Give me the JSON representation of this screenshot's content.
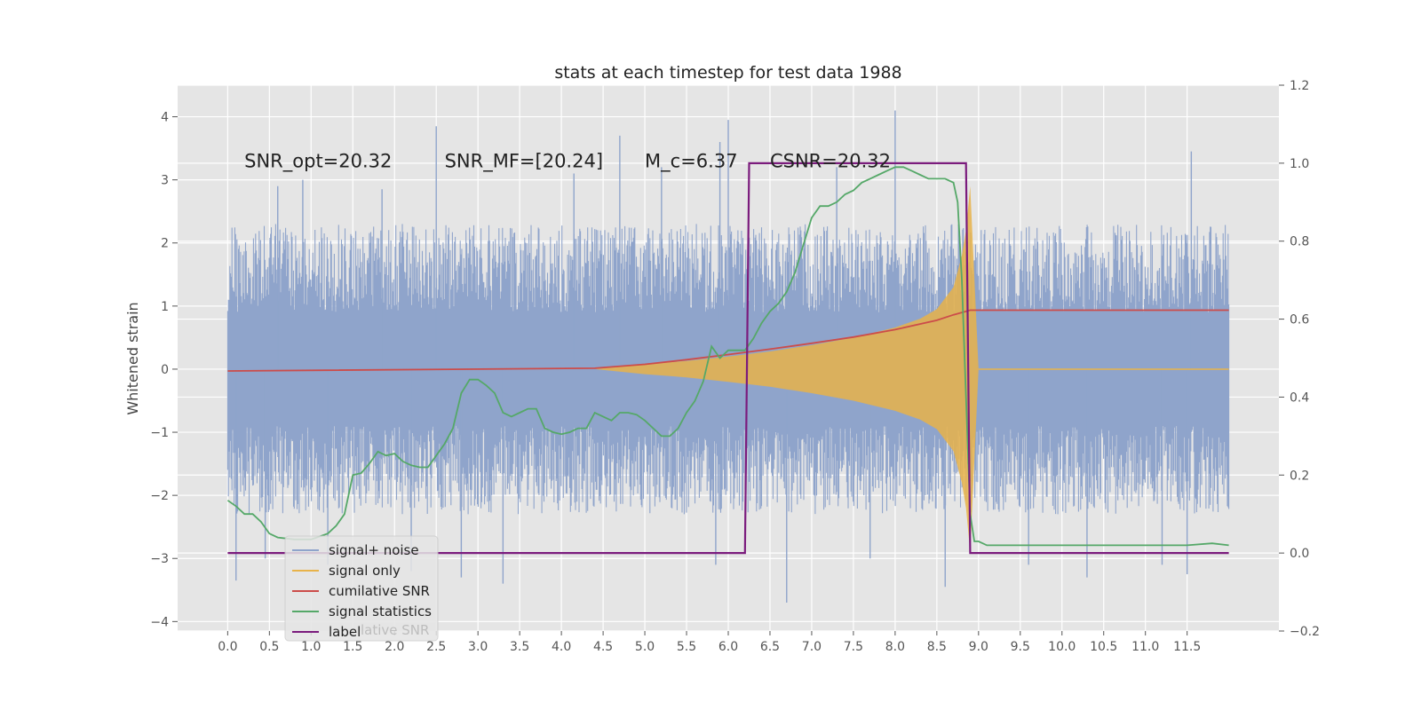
{
  "chart_data": {
    "type": "line",
    "title": "stats at each timestep for test data 1988",
    "ylabel": "Whitened strain",
    "y2label": "",
    "xlim": [
      -0.6,
      12.6
    ],
    "ylim": [
      -4.15,
      4.5
    ],
    "y2lim": [
      -0.2,
      1.2
    ],
    "grid": true,
    "xticks": [
      0.0,
      0.5,
      1.0,
      1.5,
      2.0,
      2.5,
      3.0,
      3.5,
      4.0,
      4.5,
      5.0,
      5.5,
      6.0,
      6.5,
      7.0,
      7.5,
      8.0,
      8.5,
      9.0,
      9.5,
      10.0,
      10.5,
      11.0,
      11.5
    ],
    "xtick_labels": [
      "0.0",
      "0.5",
      "1.0",
      "1.5",
      "2.0",
      "2.5",
      "3.0",
      "3.5",
      "4.0",
      "4.5",
      "5.0",
      "5.5",
      "6.0",
      "6.5",
      "7.0",
      "7.5",
      "8.0",
      "8.5",
      "9.0",
      "9.5",
      "10.0",
      "10.5",
      "11.0",
      "11.5"
    ],
    "yticks": [
      -4,
      -3,
      -2,
      -1,
      0,
      1,
      2,
      3,
      4
    ],
    "ytick_labels": [
      "−4",
      "−3",
      "−2",
      "−1",
      "0",
      "1",
      "2",
      "3",
      "4"
    ],
    "y2ticks": [
      -0.2,
      0.0,
      0.2,
      0.4,
      0.6,
      0.8,
      1.0,
      1.2
    ],
    "y2tick_labels": [
      "−0.2",
      "0.0",
      "0.2",
      "0.4",
      "0.6",
      "0.8",
      "1.0",
      "1.2"
    ],
    "annotations": [
      {
        "id": "snr-opt",
        "text": "SNR_opt=20.32",
        "x": 0.2,
        "y": 3.3
      },
      {
        "id": "snr-mf",
        "text": "SNR_MF=[20.24]",
        "x": 2.6,
        "y": 3.3
      },
      {
        "id": "mc",
        "text": "M_c=6.37",
        "x": 5.0,
        "y": 3.3
      },
      {
        "id": "csnr",
        "text": "CSNR=20.32",
        "x": 6.5,
        "y": 3.3
      }
    ],
    "legend_position": "lower-left",
    "series": [
      {
        "name": "signal+ noise",
        "color": "#8fa4cb",
        "axis": "left",
        "kind": "noise-band",
        "x_start": 0.0,
        "x_end": 12.0,
        "band_low": -2.0,
        "band_high": 2.0,
        "spikes": [
          {
            "x": 0.1,
            "y": -3.35
          },
          {
            "x": 0.45,
            "y": -3.0
          },
          {
            "x": 0.6,
            "y": 2.9
          },
          {
            "x": 0.9,
            "y": 3.0
          },
          {
            "x": 1.2,
            "y": -3.1
          },
          {
            "x": 1.85,
            "y": 2.85
          },
          {
            "x": 2.2,
            "y": -3.2
          },
          {
            "x": 2.5,
            "y": 3.85
          },
          {
            "x": 2.8,
            "y": -3.3
          },
          {
            "x": 3.3,
            "y": -3.4
          },
          {
            "x": 4.15,
            "y": 3.1
          },
          {
            "x": 4.7,
            "y": 3.7
          },
          {
            "x": 5.2,
            "y": 3.2
          },
          {
            "x": 5.9,
            "y": 3.6
          },
          {
            "x": 5.85,
            "y": -3.1
          },
          {
            "x": 6.0,
            "y": 3.95
          },
          {
            "x": 6.7,
            "y": -3.7
          },
          {
            "x": 7.3,
            "y": 3.2
          },
          {
            "x": 7.7,
            "y": -3.0
          },
          {
            "x": 8.0,
            "y": 4.1
          },
          {
            "x": 8.6,
            "y": -3.45
          },
          {
            "x": 9.6,
            "y": -3.1
          },
          {
            "x": 10.3,
            "y": -3.3
          },
          {
            "x": 11.2,
            "y": -3.1
          },
          {
            "x": 11.55,
            "y": 3.45
          },
          {
            "x": 11.5,
            "y": -3.25
          }
        ]
      },
      {
        "name": "signal only",
        "color": "#e8b34a",
        "axis": "left",
        "kind": "chirp",
        "x": [
          4.4,
          5.0,
          5.5,
          6.0,
          6.5,
          7.0,
          7.5,
          8.0,
          8.3,
          8.5,
          8.7,
          8.8,
          8.85,
          8.9,
          9.0
        ],
        "amplitude": [
          0.0,
          0.08,
          0.13,
          0.2,
          0.28,
          0.38,
          0.5,
          0.66,
          0.8,
          0.95,
          1.3,
          1.8,
          2.2,
          2.9,
          0.0
        ]
      },
      {
        "name": "cumilative SNR",
        "color": "#cc4c4a",
        "axis": "right",
        "x": [
          0.0,
          4.4,
          5.0,
          5.5,
          6.0,
          6.5,
          7.0,
          7.5,
          8.0,
          8.5,
          8.7,
          8.9,
          9.0,
          10.0,
          11.0,
          12.0
        ],
        "y": [
          0.467,
          0.474,
          0.484,
          0.496,
          0.509,
          0.523,
          0.538,
          0.554,
          0.573,
          0.597,
          0.611,
          0.623,
          0.623,
          0.623,
          0.623,
          0.623
        ]
      },
      {
        "name": "signal statistics",
        "color": "#55a868",
        "axis": "right",
        "x": [
          0.0,
          0.1,
          0.2,
          0.3,
          0.4,
          0.5,
          0.6,
          0.8,
          1.0,
          1.2,
          1.3,
          1.4,
          1.5,
          1.6,
          1.7,
          1.8,
          1.9,
          2.0,
          2.1,
          2.2,
          2.3,
          2.4,
          2.5,
          2.6,
          2.7,
          2.8,
          2.9,
          3.0,
          3.1,
          3.2,
          3.3,
          3.4,
          3.5,
          3.6,
          3.7,
          3.8,
          3.9,
          4.0,
          4.1,
          4.2,
          4.3,
          4.4,
          4.5,
          4.6,
          4.7,
          4.8,
          4.9,
          5.0,
          5.1,
          5.2,
          5.3,
          5.4,
          5.5,
          5.6,
          5.7,
          5.8,
          5.9,
          6.0,
          6.1,
          6.2,
          6.3,
          6.4,
          6.5,
          6.6,
          6.7,
          6.8,
          6.9,
          7.0,
          7.1,
          7.2,
          7.3,
          7.4,
          7.5,
          7.6,
          7.7,
          7.8,
          7.9,
          8.0,
          8.1,
          8.2,
          8.3,
          8.4,
          8.5,
          8.6,
          8.7,
          8.75,
          8.8,
          8.85,
          8.9,
          8.95,
          9.0,
          9.1,
          9.2,
          9.3,
          9.5,
          10.0,
          10.5,
          11.0,
          11.5,
          11.8,
          12.0
        ],
        "y": [
          0.135,
          0.12,
          0.1,
          0.1,
          0.08,
          0.05,
          0.04,
          0.035,
          0.035,
          0.05,
          0.07,
          0.1,
          0.2,
          0.205,
          0.23,
          0.26,
          0.25,
          0.255,
          0.235,
          0.225,
          0.22,
          0.22,
          0.25,
          0.28,
          0.32,
          0.41,
          0.445,
          0.445,
          0.43,
          0.41,
          0.36,
          0.35,
          0.36,
          0.37,
          0.37,
          0.32,
          0.31,
          0.305,
          0.31,
          0.32,
          0.32,
          0.36,
          0.35,
          0.34,
          0.36,
          0.36,
          0.355,
          0.34,
          0.32,
          0.3,
          0.3,
          0.32,
          0.36,
          0.39,
          0.44,
          0.53,
          0.5,
          0.52,
          0.52,
          0.52,
          0.55,
          0.59,
          0.62,
          0.64,
          0.67,
          0.72,
          0.79,
          0.86,
          0.89,
          0.89,
          0.9,
          0.92,
          0.93,
          0.95,
          0.96,
          0.97,
          0.98,
          0.99,
          0.99,
          0.98,
          0.97,
          0.96,
          0.96,
          0.96,
          0.95,
          0.9,
          0.7,
          0.4,
          0.1,
          0.03,
          0.03,
          0.02,
          0.02,
          0.02,
          0.02,
          0.02,
          0.02,
          0.02,
          0.02,
          0.025,
          0.02
        ]
      },
      {
        "name": "label",
        "color": "#7b1b7d",
        "axis": "right",
        "x": [
          0.0,
          6.2,
          6.25,
          8.85,
          8.9,
          12.0
        ],
        "y": [
          0.0,
          0.0,
          1.0,
          1.0,
          0.0,
          0.0
        ]
      }
    ]
  },
  "legend": {
    "entries": [
      "signal+ noise",
      "signal only",
      "cumilative SNR",
      "signal statistics",
      "label"
    ],
    "ghost_text": "lative SNR"
  }
}
